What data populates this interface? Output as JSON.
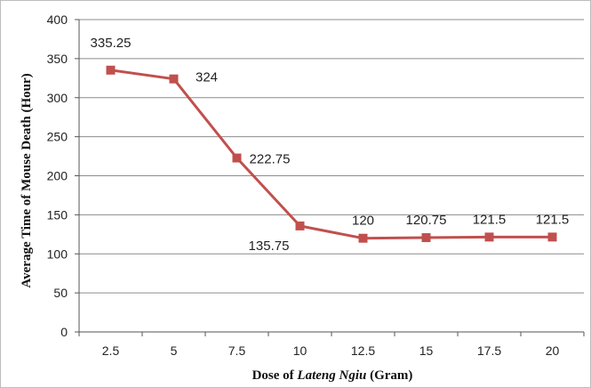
{
  "chart_data": {
    "type": "line",
    "x": [
      "2.5",
      "5",
      "7.5",
      "10",
      "12.5",
      "15",
      "17.5",
      "20"
    ],
    "y": [
      335.25,
      324,
      222.75,
      135.75,
      120,
      120.75,
      121.5,
      121.5
    ],
    "data_labels": [
      "335.25",
      "324",
      "222.75",
      "135.75",
      "120",
      "120.75",
      "121.5",
      "121.5"
    ],
    "xlabel": {
      "prefix": "Dose of ",
      "italic": "Lateng Ngiu",
      "suffix": " (Gram)"
    },
    "ylabel": "Average Time of Mouse Death (Hour)",
    "ylim": [
      0,
      400
    ],
    "yticks": [
      "0",
      "50",
      "100",
      "150",
      "200",
      "250",
      "300",
      "350",
      "400"
    ],
    "grid": "horizontal",
    "legend": "none",
    "series_color": "#c0504d",
    "grid_color": "#8c8c8c"
  }
}
